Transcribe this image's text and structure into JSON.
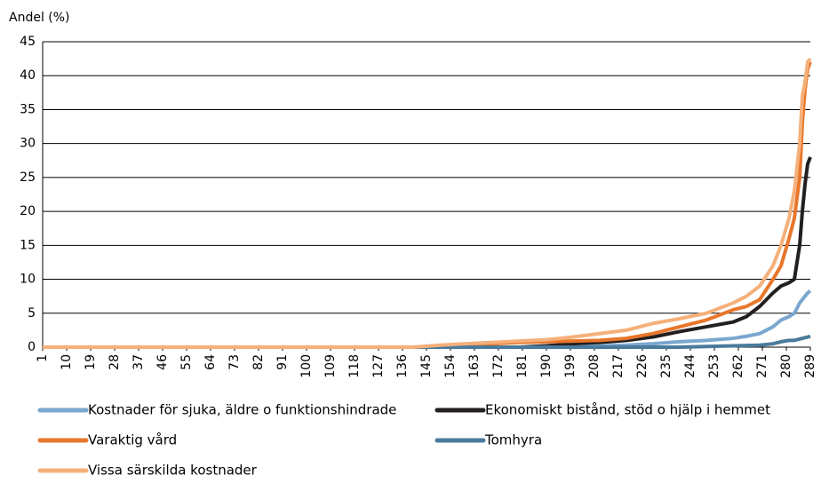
{
  "chart_data": {
    "type": "line",
    "y_label": "Andel (%)",
    "x": [
      1,
      140,
      150,
      160,
      170,
      180,
      190,
      200,
      210,
      220,
      230,
      240,
      250,
      260,
      265,
      270,
      275,
      278,
      281,
      283,
      285,
      286,
      287,
      288,
      289
    ],
    "xlim": [
      1,
      289
    ],
    "xticks": [
      1,
      10,
      19,
      28,
      37,
      46,
      55,
      64,
      73,
      82,
      91,
      100,
      109,
      118,
      127,
      136,
      145,
      154,
      163,
      172,
      181,
      190,
      199,
      208,
      217,
      226,
      235,
      244,
      253,
      262,
      271,
      280,
      289
    ],
    "ylim": [
      0,
      45
    ],
    "yticks": [
      0,
      5,
      10,
      15,
      20,
      25,
      30,
      35,
      40,
      45
    ],
    "grid": true,
    "series": [
      {
        "name": "Kostnader för sjuka, äldre o funktionshindrade",
        "color": "#7aa7d0",
        "values": [
          0,
          0,
          0,
          0,
          0,
          0,
          0,
          0.1,
          0.2,
          0.3,
          0.5,
          0.8,
          1,
          1.3,
          1.6,
          2,
          3,
          4,
          4.5,
          5,
          6.5,
          7,
          7.5,
          8,
          8.3
        ]
      },
      {
        "name": "Ekonomiskt bistånd, stöd o hjälp i hemmet",
        "color": "#231f20",
        "values": [
          0,
          0,
          0,
          0,
          0,
          0,
          0.2,
          0.5,
          0.7,
          1,
          1.5,
          2.3,
          3,
          3.7,
          4.5,
          6,
          8,
          9,
          9.5,
          10,
          15,
          20,
          24,
          27,
          28
        ]
      },
      {
        "name": "Varaktig vård",
        "color": "#e8762b",
        "values": [
          0,
          0,
          0.1,
          0.3,
          0.5,
          0.7,
          0.8,
          0.9,
          1,
          1.3,
          2,
          3,
          4,
          5.5,
          6,
          7,
          10,
          12,
          16,
          19,
          25,
          33,
          38,
          41,
          42
        ]
      },
      {
        "name": "Tomhyra",
        "color": "#4a7b9c",
        "values": [
          0,
          0,
          0,
          0,
          0,
          0,
          0,
          0,
          0,
          0,
          0,
          0,
          0.1,
          0.2,
          0.25,
          0.3,
          0.5,
          0.8,
          1,
          1,
          1.2,
          1.3,
          1.4,
          1.5,
          1.6
        ]
      },
      {
        "name": "Vissa särskilda kostnader",
        "color": "#f5b07a",
        "values": [
          0,
          0,
          0.3,
          0.5,
          0.7,
          0.9,
          1.1,
          1.5,
          2,
          2.5,
          3.5,
          4.2,
          5,
          6.5,
          7.5,
          9,
          12,
          15,
          19,
          23,
          30,
          37,
          39,
          42,
          42.5
        ]
      }
    ]
  }
}
